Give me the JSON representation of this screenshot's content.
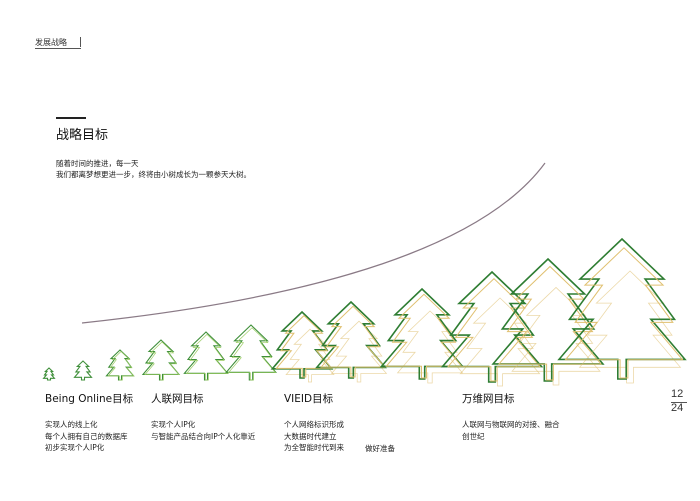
{
  "header": {
    "section": "发展战略"
  },
  "title": "战略目标",
  "subtitle": [
    "随着时间的推进，每一天",
    "我们都离梦想更进一步，终将由小树成长为一颗参天大树。"
  ],
  "stages": [
    {
      "title": "Being Online目标",
      "desc": [
        "实现人的线上化",
        "每个人拥有自己的数据库",
        "初步实现个人IP化"
      ]
    },
    {
      "title": "人联网目标",
      "desc": [
        "实现个人IP化",
        "与智能产品结合向IP个人化靠近"
      ]
    },
    {
      "title": "VIEID目标",
      "desc": [
        "个人网络标识形成",
        "大数据时代建立",
        "为全智能时代到来"
      ]
    },
    {
      "title": "万维网目标",
      "desc": [
        "人联网与物联网的对接、融合",
        "创世纪"
      ]
    }
  ],
  "extra_note": "做好准备",
  "page": {
    "current": "12",
    "total": "24"
  },
  "colors": {
    "tree_green": "#2e7d32",
    "tree_light": "#9ccc65",
    "tree_gold": "#e0c070",
    "curve": "#8a7a86"
  }
}
